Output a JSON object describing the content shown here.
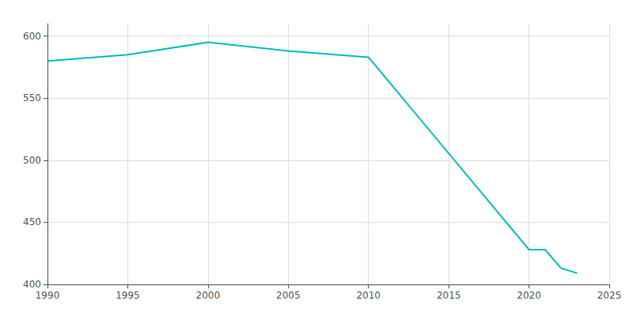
{
  "chart_data": {
    "type": "line",
    "x": [
      1990,
      1995,
      2000,
      2005,
      2010,
      2020,
      2021,
      2022,
      2023
    ],
    "values": [
      580,
      585,
      595,
      588,
      583,
      428,
      428,
      413,
      409
    ],
    "color": "#00BFBF",
    "xlim": [
      1990,
      2025
    ],
    "xticks": [
      1990,
      1995,
      2000,
      2005,
      2010,
      2015,
      2020,
      2025
    ],
    "ylim": [
      400,
      610
    ],
    "yticks": [
      400,
      450,
      500,
      550,
      600
    ],
    "grid": true
  }
}
